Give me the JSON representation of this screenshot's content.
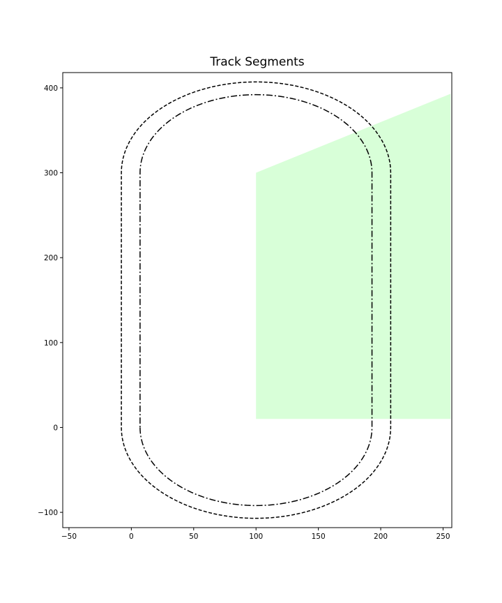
{
  "chart_data": {
    "type": "line",
    "title": "Track Segments",
    "xlabel": "",
    "ylabel": "",
    "xlim": [
      -55,
      257
    ],
    "ylim": [
      -118,
      418
    ],
    "grid": false,
    "xticks": [
      -50,
      0,
      50,
      100,
      150,
      200,
      250
    ],
    "yticks": [
      -100,
      0,
      100,
      200,
      300,
      400
    ],
    "xtick_labels": [
      "−50",
      "0",
      "50",
      "100",
      "150",
      "200",
      "250"
    ],
    "ytick_labels": [
      "−100",
      "0",
      "100",
      "200",
      "300",
      "400"
    ],
    "series": [
      {
        "style": "dashed",
        "color": "#000000",
        "center_x": 100,
        "straight_y": [
          0,
          300
        ],
        "half_width": 108,
        "cap_height": 107
      },
      {
        "style": "dashdot",
        "color": "#000000",
        "center_x": 100,
        "straight_y": [
          0,
          300
        ],
        "half_width": 93,
        "cap_height": 92
      }
    ],
    "regions": [
      {
        "color": "#d8ffd8",
        "points": [
          [
            100,
            10
          ],
          [
            256,
            10
          ],
          [
            256,
            393
          ],
          [
            100,
            300
          ]
        ]
      }
    ]
  }
}
